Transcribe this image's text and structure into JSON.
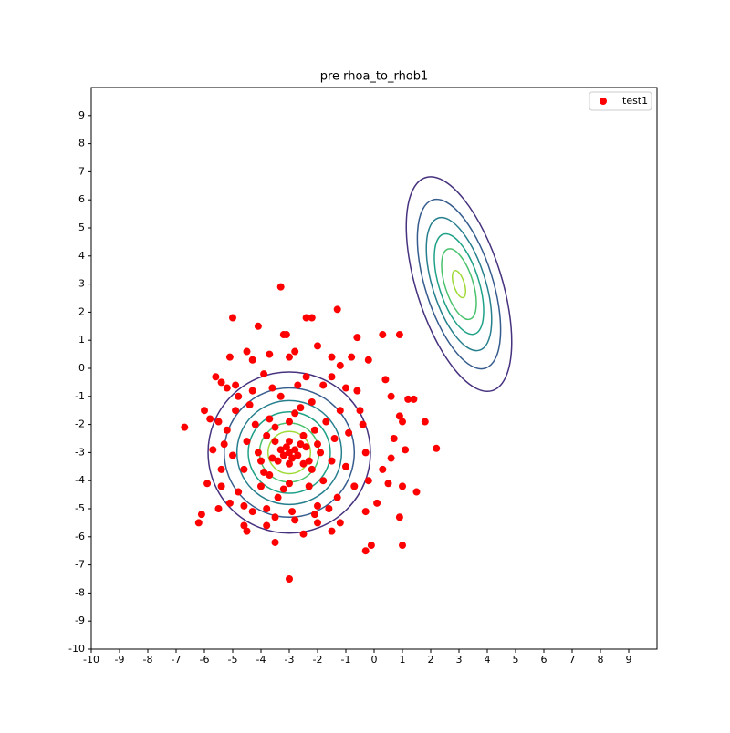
{
  "chart_data": {
    "type": "scatter",
    "title": "pre rhoa_to_rhob1",
    "xlim": [
      -10,
      10
    ],
    "ylim": [
      -10,
      10
    ],
    "xticks": [
      -10,
      -9,
      -8,
      -7,
      -6,
      -5,
      -4,
      -3,
      -2,
      -1,
      0,
      1,
      2,
      3,
      4,
      5,
      6,
      7,
      8,
      9
    ],
    "yticks": [
      -10,
      -9,
      -8,
      -7,
      -6,
      -5,
      -4,
      -3,
      -2,
      -1,
      0,
      1,
      2,
      3,
      4,
      5,
      6,
      7,
      8,
      9
    ],
    "legend": "upper right",
    "series": [
      {
        "name": "test1",
        "color": "#ff0000",
        "x": [
          -3.3,
          -5,
          -1.3,
          -3,
          -6.7,
          2.2,
          1.8,
          1,
          -0.3,
          -0.1,
          -3.5,
          -6.2,
          -6.1,
          -5.5,
          0.9,
          1,
          1.5,
          1.1,
          1.2,
          1.4,
          0.9,
          1,
          0.9,
          0.3,
          -0.6,
          -4.1,
          -3.1,
          -3.2,
          -3,
          -2.2,
          -2.4,
          -2,
          -5.1,
          -5.6,
          -5.4,
          -6,
          -5.8,
          -5.2,
          -4.5,
          -4.3,
          -3.7,
          -2.8,
          -1.5,
          -1.2,
          -0.8,
          -0.2,
          0.4,
          0.6,
          0.7,
          0.6,
          0.5,
          0.1,
          -0.3,
          -1.2,
          -2,
          -2.8,
          -3.8,
          -4.5,
          -4.6,
          -5.4,
          -5.9,
          -5.7,
          -5.3,
          -4.9,
          -4.8,
          -2.5,
          -1.5,
          0.3,
          -1.5,
          -4.3,
          -3,
          -2.8,
          -3.2,
          -3.1,
          -2.9,
          -3.3,
          -2.7,
          -3,
          -3,
          -3.4,
          -2.6,
          -3.5,
          -2.5,
          -3.6,
          -2.4,
          -3.8,
          -2.2,
          -3.9,
          -2.1,
          -4.1,
          -1.9,
          -3,
          -3,
          -3.7,
          -2.3,
          -4.2,
          -1.8,
          -4,
          -1.7,
          -4.5,
          -1.5,
          -2.6,
          -3.4,
          -4.6,
          -1.4,
          -2.2,
          -3.8,
          -5,
          -1,
          -3.3,
          -2,
          -4.4,
          -1.2,
          -4.8,
          -0.9,
          -2.7,
          -3.6,
          -5.2,
          -0.7,
          -1.6,
          -4.3,
          -2.4,
          -0.5,
          -5.4,
          -3.9,
          -1.8,
          -0.3,
          -4.9,
          -2.9,
          -5.1,
          -1,
          -0.4,
          -1.3,
          -4.6,
          -2.1,
          -3.5,
          -0.2,
          -5.5,
          -0.6,
          -2.5,
          -3.5,
          -2.3,
          -3.7,
          -2,
          -4,
          -3.2,
          -2.8
        ],
        "values": [
          2.9,
          1.8,
          2.1,
          -7.5,
          -2.1,
          -2.85,
          -1.9,
          -6.3,
          -6.5,
          -6.3,
          -6.2,
          -5.5,
          -5.2,
          -5,
          -5.3,
          -4.2,
          -4.4,
          -2.9,
          -1.1,
          -1.1,
          -1.7,
          -1.9,
          1.2,
          1.2,
          1.1,
          1.5,
          1.2,
          1.2,
          0.4,
          1.8,
          1.8,
          0.8,
          0.4,
          -0.3,
          -0.5,
          -1.5,
          -1.8,
          -0.7,
          0.6,
          0.3,
          0.5,
          0.6,
          0.4,
          0.1,
          0.4,
          0.3,
          -0.4,
          -1,
          -2.5,
          -3.2,
          -4.1,
          -4.8,
          -5.1,
          -5.5,
          -5.5,
          -5.4,
          -5.6,
          -5.8,
          -5.6,
          -4.2,
          -4.1,
          -2.9,
          -2.7,
          -1.5,
          -1,
          -5.9,
          -5.8,
          -3.6,
          -0.3,
          -0.8,
          -3,
          -2.9,
          -3.1,
          -2.8,
          -3.2,
          -2.9,
          -3.1,
          -3.4,
          -2.6,
          -3.3,
          -2.7,
          -2.6,
          -3.4,
          -3.2,
          -2.8,
          -2.4,
          -3.6,
          -3.7,
          -2.2,
          -3,
          -3,
          -1.9,
          -4.1,
          -1.8,
          -4.2,
          -2,
          -4,
          -4.2,
          -1.9,
          -2.6,
          -3.3,
          -1.4,
          -4.6,
          -3.6,
          -2.5,
          -1.2,
          -5,
          -3.1,
          -3.5,
          -1,
          -4.9,
          -1.3,
          -1.5,
          -4.4,
          -2.3,
          -0.6,
          -0.7,
          -2.2,
          -4.2,
          -5,
          -5.1,
          -0.3,
          -1.5,
          -3.6,
          -0.2,
          -0.6,
          -3,
          -0.6,
          -5.1,
          -4.8,
          -0.7,
          -2,
          -4.6,
          -4.9,
          -5.2,
          -5.3,
          -4,
          -1.9,
          -0.8,
          -2.4,
          -2.1,
          -3.3,
          -3.8,
          -2.7,
          -3.3,
          -4.3,
          -1.6
        ]
      }
    ],
    "contours": [
      {
        "center": [
          -3,
          -3
        ],
        "rx": 2.87,
        "ry": 2.87,
        "angle": 0,
        "color": "#46327e"
      },
      {
        "center": [
          -3,
          -3
        ],
        "rx": 2.3,
        "ry": 2.3,
        "angle": 0,
        "color": "#365c8d"
      },
      {
        "center": [
          -3,
          -3
        ],
        "rx": 1.85,
        "ry": 1.85,
        "angle": 0,
        "color": "#277f8e"
      },
      {
        "center": [
          -3,
          -3
        ],
        "rx": 1.45,
        "ry": 1.45,
        "angle": 0,
        "color": "#1fa187"
      },
      {
        "center": [
          -3,
          -3
        ],
        "rx": 1.05,
        "ry": 1.05,
        "angle": 0,
        "color": "#4ac16d"
      },
      {
        "center": [
          -3,
          -3
        ],
        "rx": 0.75,
        "ry": 0.75,
        "angle": 0,
        "color": "#a0da39"
      },
      {
        "center": [
          3,
          3
        ],
        "rx": 3.95,
        "ry": 1.52,
        "angle": -72.6,
        "color": "#46327e"
      },
      {
        "center": [
          3,
          3
        ],
        "rx": 3.12,
        "ry": 1.2,
        "angle": -72.6,
        "color": "#365c8d"
      },
      {
        "center": [
          3,
          3
        ],
        "rx": 2.45,
        "ry": 0.94,
        "angle": -72.6,
        "color": "#277f8e"
      },
      {
        "center": [
          3,
          3
        ],
        "rx": 1.85,
        "ry": 0.71,
        "angle": -72.6,
        "color": "#1fa187"
      },
      {
        "center": [
          3,
          3
        ],
        "rx": 1.3,
        "ry": 0.5,
        "angle": -72.6,
        "color": "#4ac16d"
      },
      {
        "center": [
          3,
          3
        ],
        "rx": 0.5,
        "ry": 0.19,
        "angle": -72.6,
        "color": "#a0da39"
      }
    ]
  }
}
